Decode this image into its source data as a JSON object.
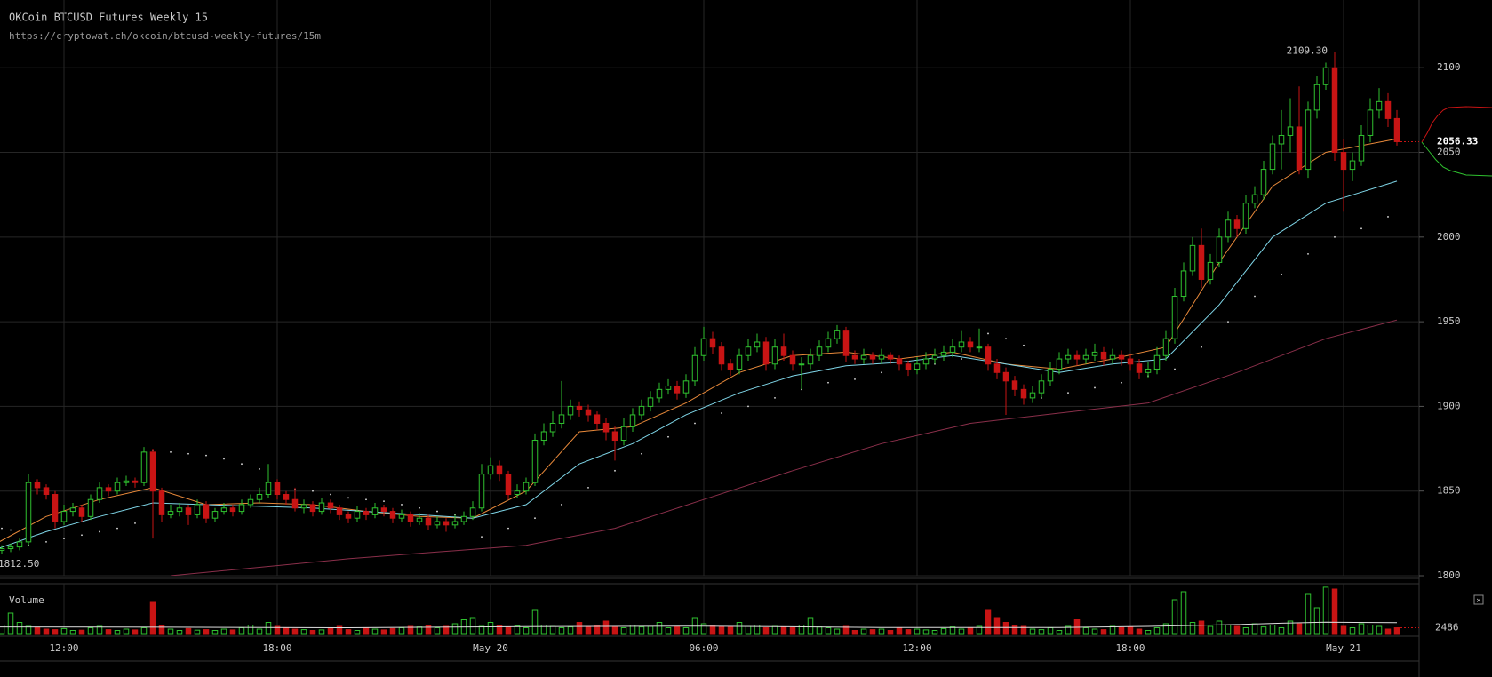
{
  "chart_data": {
    "type": "candlestick",
    "title": "OKCoin BTCUSD Futures Weekly 15",
    "subtitle": "https://cryptowat.ch/okcoin/btcusd-weekly-futures/15m",
    "up_color": "#2fc12f",
    "down_color": "#c81414",
    "grid": true,
    "xlim": [
      0.8,
      160.5
    ],
    "xticks": [
      {
        "value": 8,
        "label": "12:00"
      },
      {
        "value": 32,
        "label": "18:00"
      },
      {
        "value": 56,
        "label": "May 20"
      },
      {
        "value": 80,
        "label": "06:00"
      },
      {
        "value": 104,
        "label": "12:00"
      },
      {
        "value": 128,
        "label": "18:00"
      },
      {
        "value": 152,
        "label": "May 21"
      }
    ],
    "ylim": [
      1800,
      2140
    ],
    "yticks": [
      1800,
      1850,
      1900,
      1950,
      2000,
      2050,
      2100
    ],
    "ohlc": [
      [
        1816,
        1818,
        1812.5,
        1815
      ],
      [
        1815,
        1818,
        1813,
        1816
      ],
      [
        1816,
        1819,
        1814,
        1817
      ],
      [
        1817,
        1822,
        1815,
        1820
      ],
      [
        1820,
        1860,
        1818,
        1855
      ],
      [
        1855,
        1857,
        1848,
        1852
      ],
      [
        1852,
        1854,
        1845,
        1848
      ],
      [
        1848,
        1850,
        1828,
        1832
      ],
      [
        1832,
        1842,
        1830,
        1838
      ],
      [
        1838,
        1843,
        1835,
        1840
      ],
      [
        1840,
        1842,
        1832,
        1835
      ],
      [
        1835,
        1848,
        1833,
        1845
      ],
      [
        1845,
        1855,
        1843,
        1852
      ],
      [
        1852,
        1854,
        1847,
        1850
      ],
      [
        1850,
        1858,
        1848,
        1855
      ],
      [
        1855,
        1859,
        1853,
        1856
      ],
      [
        1856,
        1858,
        1852,
        1855
      ],
      [
        1855,
        1876,
        1853,
        1873
      ],
      [
        1873,
        1875,
        1822,
        1850
      ],
      [
        1850,
        1852,
        1832,
        1836
      ],
      [
        1836,
        1842,
        1834,
        1838
      ],
      [
        1838,
        1843,
        1835,
        1840
      ],
      [
        1840,
        1842,
        1830,
        1836
      ],
      [
        1836,
        1845,
        1834,
        1842
      ],
      [
        1842,
        1844,
        1831,
        1834
      ],
      [
        1834,
        1840,
        1832,
        1838
      ],
      [
        1838,
        1843,
        1836,
        1840
      ],
      [
        1840,
        1842,
        1835,
        1838
      ],
      [
        1838,
        1845,
        1836,
        1842
      ],
      [
        1842,
        1848,
        1840,
        1845
      ],
      [
        1845,
        1852,
        1843,
        1848
      ],
      [
        1848,
        1866,
        1846,
        1855
      ],
      [
        1855,
        1857,
        1845,
        1848
      ],
      [
        1848,
        1850,
        1842,
        1845
      ],
      [
        1845,
        1852,
        1838,
        1840
      ],
      [
        1840,
        1845,
        1837,
        1842
      ],
      [
        1842,
        1844,
        1835,
        1838
      ],
      [
        1838,
        1846,
        1836,
        1843
      ],
      [
        1843,
        1845,
        1837,
        1840
      ],
      [
        1840,
        1842,
        1833,
        1836
      ],
      [
        1836,
        1838,
        1831,
        1834
      ],
      [
        1834,
        1841,
        1832,
        1838
      ],
      [
        1838,
        1840,
        1833,
        1836
      ],
      [
        1836,
        1843,
        1834,
        1840
      ],
      [
        1840,
        1842,
        1835,
        1838
      ],
      [
        1838,
        1840,
        1831,
        1834
      ],
      [
        1834,
        1839,
        1832,
        1836
      ],
      [
        1836,
        1838,
        1829,
        1832
      ],
      [
        1832,
        1837,
        1830,
        1834
      ],
      [
        1834,
        1836,
        1827,
        1830
      ],
      [
        1830,
        1835,
        1828,
        1832
      ],
      [
        1832,
        1834,
        1826,
        1830
      ],
      [
        1830,
        1836,
        1828,
        1832
      ],
      [
        1832,
        1838,
        1830,
        1835
      ],
      [
        1835,
        1844,
        1833,
        1840
      ],
      [
        1840,
        1866,
        1838,
        1860
      ],
      [
        1860,
        1870,
        1857,
        1865
      ],
      [
        1865,
        1868,
        1856,
        1860
      ],
      [
        1860,
        1862,
        1845,
        1848
      ],
      [
        1848,
        1854,
        1846,
        1850
      ],
      [
        1850,
        1858,
        1848,
        1855
      ],
      [
        1855,
        1884,
        1853,
        1880
      ],
      [
        1880,
        1890,
        1877,
        1885
      ],
      [
        1885,
        1897,
        1882,
        1890
      ],
      [
        1890,
        1915,
        1887,
        1895
      ],
      [
        1895,
        1904,
        1892,
        1900
      ],
      [
        1900,
        1903,
        1894,
        1898
      ],
      [
        1898,
        1901,
        1891,
        1895
      ],
      [
        1895,
        1897,
        1886,
        1890
      ],
      [
        1890,
        1893,
        1880,
        1885
      ],
      [
        1885,
        1888,
        1868,
        1880
      ],
      [
        1880,
        1893,
        1877,
        1888
      ],
      [
        1888,
        1899,
        1885,
        1895
      ],
      [
        1895,
        1904,
        1892,
        1900
      ],
      [
        1900,
        1909,
        1897,
        1905
      ],
      [
        1905,
        1914,
        1902,
        1910
      ],
      [
        1910,
        1916,
        1907,
        1912
      ],
      [
        1912,
        1915,
        1904,
        1908
      ],
      [
        1908,
        1919,
        1905,
        1915
      ],
      [
        1915,
        1935,
        1912,
        1930
      ],
      [
        1930,
        1947,
        1927,
        1940
      ],
      [
        1940,
        1944,
        1931,
        1935
      ],
      [
        1935,
        1938,
        1921,
        1925
      ],
      [
        1925,
        1928,
        1918,
        1922
      ],
      [
        1922,
        1934,
        1919,
        1930
      ],
      [
        1930,
        1940,
        1927,
        1935
      ],
      [
        1935,
        1943,
        1932,
        1938
      ],
      [
        1938,
        1941,
        1921,
        1925
      ],
      [
        1925,
        1940,
        1922,
        1935
      ],
      [
        1935,
        1943,
        1927,
        1930
      ],
      [
        1930,
        1933,
        1921,
        1925
      ],
      [
        1925,
        1929,
        1910,
        1925
      ],
      [
        1925,
        1934,
        1922,
        1930
      ],
      [
        1930,
        1939,
        1927,
        1935
      ],
      [
        1935,
        1944,
        1932,
        1940
      ],
      [
        1940,
        1948,
        1937,
        1945
      ],
      [
        1945,
        1947,
        1926,
        1930
      ],
      [
        1930,
        1933,
        1925,
        1928
      ],
      [
        1928,
        1934,
        1925,
        1930
      ],
      [
        1930,
        1932,
        1925,
        1928
      ],
      [
        1928,
        1934,
        1925,
        1930
      ],
      [
        1930,
        1932,
        1925,
        1928
      ],
      [
        1928,
        1930,
        1921,
        1925
      ],
      [
        1925,
        1927,
        1918,
        1922
      ],
      [
        1922,
        1929,
        1919,
        1925
      ],
      [
        1925,
        1932,
        1922,
        1928
      ],
      [
        1928,
        1934,
        1925,
        1930
      ],
      [
        1930,
        1936,
        1927,
        1932
      ],
      [
        1932,
        1940,
        1929,
        1935
      ],
      [
        1935,
        1945,
        1932,
        1938
      ],
      [
        1938,
        1941,
        1932,
        1935
      ],
      [
        1935,
        1946,
        1932,
        1935
      ],
      [
        1935,
        1937,
        1921,
        1925
      ],
      [
        1925,
        1928,
        1916,
        1920
      ],
      [
        1920,
        1923,
        1895,
        1915
      ],
      [
        1915,
        1918,
        1906,
        1910
      ],
      [
        1910,
        1913,
        1901,
        1905
      ],
      [
        1905,
        1912,
        1902,
        1908
      ],
      [
        1908,
        1919,
        1905,
        1915
      ],
      [
        1915,
        1926,
        1912,
        1922
      ],
      [
        1922,
        1932,
        1919,
        1928
      ],
      [
        1928,
        1934,
        1925,
        1930
      ],
      [
        1930,
        1933,
        1924,
        1928
      ],
      [
        1928,
        1934,
        1925,
        1930
      ],
      [
        1930,
        1937,
        1927,
        1932
      ],
      [
        1932,
        1935,
        1924,
        1928
      ],
      [
        1928,
        1934,
        1925,
        1930
      ],
      [
        1930,
        1933,
        1924,
        1928
      ],
      [
        1928,
        1931,
        1921,
        1925
      ],
      [
        1925,
        1928,
        1916,
        1920
      ],
      [
        1920,
        1926,
        1917,
        1922
      ],
      [
        1922,
        1935,
        1919,
        1930
      ],
      [
        1930,
        1945,
        1927,
        1940
      ],
      [
        1940,
        1970,
        1937,
        1965
      ],
      [
        1965,
        1985,
        1962,
        1980
      ],
      [
        1980,
        2000,
        1977,
        1995
      ],
      [
        1995,
        2005,
        1970,
        1975
      ],
      [
        1975,
        1990,
        1972,
        1985
      ],
      [
        1985,
        2005,
        1982,
        2000
      ],
      [
        2000,
        2015,
        1997,
        2010
      ],
      [
        2010,
        2013,
        2000,
        2005
      ],
      [
        2005,
        2025,
        2002,
        2020
      ],
      [
        2020,
        2030,
        2017,
        2025
      ],
      [
        2025,
        2045,
        2022,
        2040
      ],
      [
        2040,
        2060,
        2037,
        2055
      ],
      [
        2055,
        2075,
        2040,
        2060
      ],
      [
        2060,
        2082,
        2050,
        2065
      ],
      [
        2065,
        2089,
        2037,
        2040
      ],
      [
        2040,
        2080,
        2035,
        2075
      ],
      [
        2075,
        2095,
        2070,
        2090
      ],
      [
        2090,
        2103,
        2087,
        2100
      ],
      [
        2100,
        2109.3,
        2045,
        2050
      ],
      [
        2050,
        2058,
        2015,
        2040
      ],
      [
        2040,
        2050,
        2033,
        2045
      ],
      [
        2045,
        2066,
        2042,
        2060
      ],
      [
        2060,
        2082,
        2056,
        2075
      ],
      [
        2075,
        2088,
        2070,
        2080
      ],
      [
        2080,
        2085,
        2065,
        2070
      ],
      [
        2070,
        2075,
        2054,
        2056.33
      ]
    ],
    "lines": [
      {
        "color": "#e8893a",
        "x": [
          0,
          6,
          12,
          18,
          24,
          30,
          36,
          42,
          48,
          54,
          60,
          66,
          72,
          78,
          84,
          90,
          96,
          102,
          108,
          114,
          120,
          126,
          132,
          138,
          144,
          150,
          158
        ],
        "values": [
          1818,
          1835,
          1845,
          1852,
          1842,
          1843,
          1842,
          1838,
          1835,
          1834,
          1850,
          1885,
          1888,
          1902,
          1920,
          1930,
          1932,
          1928,
          1932,
          1925,
          1922,
          1928,
          1935,
          1985,
          2030,
          2050,
          2058
        ]
      },
      {
        "color": "#7fd6e8",
        "x": [
          0,
          6,
          12,
          18,
          24,
          30,
          36,
          42,
          48,
          54,
          60,
          66,
          72,
          78,
          84,
          90,
          96,
          102,
          108,
          114,
          120,
          126,
          132,
          138,
          144,
          150,
          158
        ],
        "values": [
          1815,
          1826,
          1835,
          1843,
          1842,
          1841,
          1840,
          1838,
          1836,
          1834,
          1842,
          1866,
          1878,
          1895,
          1908,
          1918,
          1924,
          1926,
          1930,
          1925,
          1920,
          1925,
          1928,
          1960,
          2000,
          2020,
          2033
        ]
      },
      {
        "color": "#8a2f4a",
        "x": [
          20,
          30,
          40,
          50,
          60,
          70,
          80,
          90,
          100,
          110,
          120,
          130,
          140,
          150,
          158
        ],
        "values": [
          1800,
          1805,
          1810,
          1814,
          1818,
          1828,
          1845,
          1862,
          1878,
          1890,
          1896,
          1902,
          1920,
          1940,
          1951
        ]
      }
    ],
    "psar": {
      "color": "#dddddd",
      "x": [
        0,
        1,
        2,
        4,
        6,
        8,
        10,
        12,
        14,
        16,
        18,
        20,
        22,
        24,
        26,
        28,
        30,
        32,
        34,
        36,
        38,
        40,
        42,
        44,
        46,
        48,
        50,
        52,
        55,
        58,
        61,
        64,
        67,
        70,
        73,
        76,
        79,
        82,
        85,
        88,
        91,
        94,
        97,
        100,
        103,
        106,
        109,
        112,
        114,
        116,
        118,
        121,
        124,
        127,
        130,
        133,
        136,
        139,
        142,
        145,
        148,
        151,
        154,
        157
      ],
      "values": [
        1828,
        1828,
        1827,
        1818,
        1820,
        1822,
        1824,
        1826,
        1828,
        1831,
        1874,
        1873,
        1872,
        1871,
        1869,
        1866,
        1863,
        1852,
        1851,
        1850,
        1848,
        1846,
        1845,
        1844,
        1842,
        1840,
        1838,
        1836,
        1823,
        1828,
        1834,
        1842,
        1852,
        1862,
        1872,
        1882,
        1890,
        1896,
        1900,
        1905,
        1910,
        1914,
        1916,
        1920,
        1922,
        1925,
        1928,
        1943,
        1940,
        1936,
        1905,
        1908,
        1911,
        1914,
        1918,
        1922,
        1935,
        1950,
        1965,
        1978,
        1990,
        2000,
        2005,
        2012
      ]
    },
    "high_label": {
      "value": 2109.3,
      "label": "2109.30"
    },
    "low_label": {
      "value": 1812.5,
      "label": "1812.50"
    },
    "last_price": 2056.33,
    "volume": {
      "label": "Volume",
      "ylim": [
        0,
        18000
      ],
      "last_label": 2486,
      "values": [
        1500,
        3500,
        8000,
        4500,
        3000,
        2500,
        2000,
        1800,
        2200,
        1500,
        1600,
        2500,
        3000,
        1800,
        1500,
        2000,
        1700,
        2500,
        12000,
        3500,
        2000,
        1500,
        2200,
        1600,
        1800,
        1500,
        2000,
        1700,
        2500,
        3500,
        2000,
        4500,
        3000,
        2500,
        2000,
        1800,
        1500,
        1700,
        2200,
        3000,
        1800,
        1500,
        2500,
        2000,
        1700,
        2200,
        2500,
        3000,
        2800,
        3500,
        2500,
        3000,
        4000,
        5500,
        6000,
        3000,
        4500,
        3500,
        2800,
        3200,
        2500,
        9000,
        3500,
        3000,
        2500,
        2800,
        4500,
        3000,
        3500,
        5000,
        3000,
        2500,
        3500,
        2800,
        3000,
        4500,
        2500,
        3000,
        2500,
        6000,
        4000,
        3500,
        3000,
        2800,
        4500,
        3000,
        3500,
        2500,
        3000,
        2800,
        2500,
        3500,
        6000,
        2800,
        2500,
        2000,
        3000,
        1500,
        2000,
        1800,
        2000,
        1500,
        2500,
        1800,
        2000,
        1700,
        1500,
        2200,
        2800,
        2000,
        2500,
        3000,
        9000,
        6000,
        4500,
        3500,
        3000,
        2000,
        1800,
        2500,
        1500,
        3000,
        5500,
        2500,
        2000,
        1800,
        3000,
        2500,
        2800,
        2000,
        1500,
        2500,
        4000,
        13000,
        16000,
        4500,
        5000,
        3000,
        5000,
        3500,
        3000,
        2500,
        4000,
        2800,
        3500,
        2500,
        5000,
        4000,
        15000,
        10000,
        17700,
        17000,
        3000,
        2500,
        4000,
        3500,
        3000,
        2000,
        2486
      ],
      "ma": {
        "color": "#dddddd",
        "x": [
          0,
          20,
          40,
          60,
          80,
          100,
          120,
          130,
          140,
          145,
          150,
          158
        ],
        "values": [
          2800,
          2700,
          2500,
          2900,
          3100,
          2600,
          2600,
          3000,
          3700,
          4200,
          4600,
          4400
        ]
      }
    }
  }
}
